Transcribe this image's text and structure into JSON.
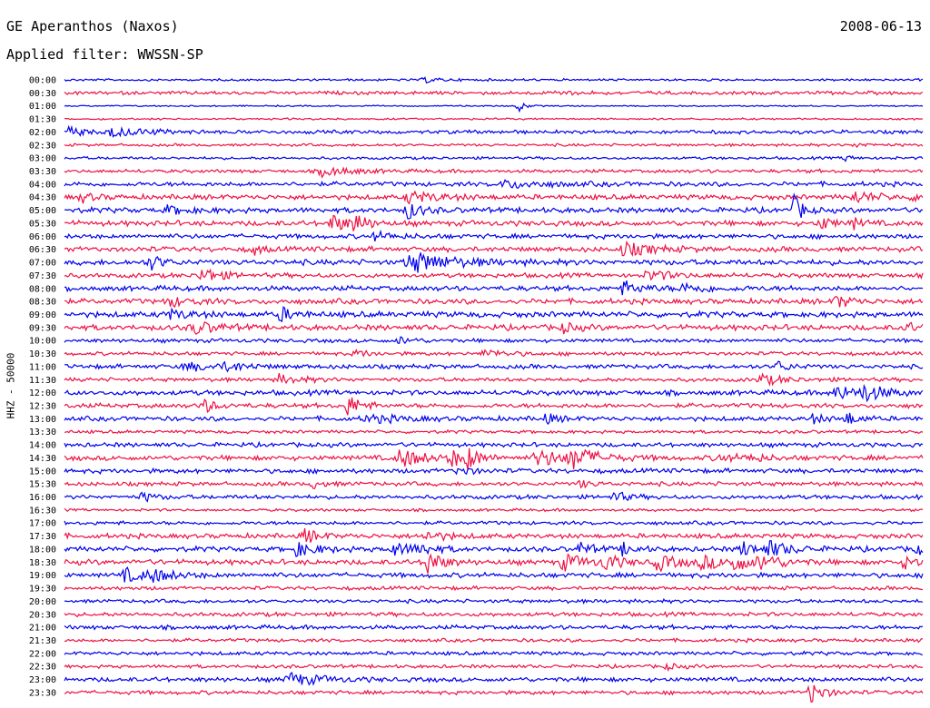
{
  "header": {
    "station": "GE Aperanthos (Naxos)",
    "date": "2008-06-13",
    "filter": "Applied filter: WWSSN-SP"
  },
  "chart_data": {
    "type": "line",
    "ylabel": "HHZ - 50000",
    "colors": {
      "even": "#0000ee",
      "odd": "#ee1144"
    },
    "rows": [
      {
        "label": "00:00",
        "noise": 1.0,
        "events": [
          [
            0.42,
            3,
            0.01
          ]
        ]
      },
      {
        "label": "00:30",
        "noise": 1.5,
        "events": [
          [
            0.57,
            2,
            0.02
          ]
        ]
      },
      {
        "label": "01:00",
        "noise": 0.6,
        "events": [
          [
            0.53,
            6,
            0.003
          ]
        ]
      },
      {
        "label": "01:30",
        "noise": 0.8,
        "events": []
      },
      {
        "label": "02:00",
        "noise": 1.6,
        "events": [
          [
            0.005,
            6,
            0.01
          ],
          [
            0.05,
            5,
            0.04
          ]
        ]
      },
      {
        "label": "02:30",
        "noise": 1.2,
        "events": [
          [
            0.92,
            2,
            0.02
          ]
        ]
      },
      {
        "label": "03:00",
        "noise": 1.2,
        "events": [
          [
            0.91,
            3,
            0.005
          ]
        ]
      },
      {
        "label": "03:30",
        "noise": 1.5,
        "events": [
          [
            0.3,
            5,
            0.03
          ]
        ]
      },
      {
        "label": "04:00",
        "noise": 2.0,
        "events": [
          [
            0.51,
            4,
            0.04
          ]
        ]
      },
      {
        "label": "04:30",
        "noise": 2.2,
        "events": [
          [
            0.02,
            5,
            0.01
          ],
          [
            0.4,
            6,
            0.03
          ],
          [
            0.92,
            6,
            0.02
          ],
          [
            0.99,
            4,
            0.005
          ]
        ]
      },
      {
        "label": "05:00",
        "noise": 2.3,
        "events": [
          [
            0.12,
            4,
            0.02
          ],
          [
            0.4,
            9,
            0.01
          ],
          [
            0.85,
            16,
            0.005
          ]
        ]
      },
      {
        "label": "05:30",
        "noise": 2.3,
        "events": [
          [
            0.31,
            10,
            0.015
          ],
          [
            0.34,
            12,
            0.005
          ],
          [
            0.88,
            7,
            0.01
          ],
          [
            0.92,
            5,
            0.005
          ]
        ]
      },
      {
        "label": "06:00",
        "noise": 2.0,
        "events": [
          [
            0.36,
            4,
            0.02
          ]
        ]
      },
      {
        "label": "06:30",
        "noise": 2.2,
        "events": [
          [
            0.22,
            6,
            0.005
          ],
          [
            0.65,
            7,
            0.03
          ]
        ]
      },
      {
        "label": "07:00",
        "noise": 2.4,
        "events": [
          [
            0.1,
            8,
            0.01
          ],
          [
            0.4,
            12,
            0.04
          ]
        ]
      },
      {
        "label": "07:30",
        "noise": 2.0,
        "events": [
          [
            0.16,
            9,
            0.015
          ],
          [
            0.68,
            6,
            0.02
          ]
        ]
      },
      {
        "label": "08:00",
        "noise": 2.2,
        "events": [
          [
            0.65,
            7,
            0.02
          ],
          [
            0.72,
            4,
            0.03
          ]
        ]
      },
      {
        "label": "08:30",
        "noise": 2.3,
        "events": [
          [
            0.12,
            5,
            0.02
          ],
          [
            0.9,
            8,
            0.01
          ]
        ]
      },
      {
        "label": "09:00",
        "noise": 2.5,
        "events": [
          [
            0.12,
            5,
            0.02
          ],
          [
            0.25,
            8,
            0.01
          ]
        ]
      },
      {
        "label": "09:30",
        "noise": 2.4,
        "events": [
          [
            0.15,
            7,
            0.02
          ],
          [
            0.58,
            5,
            0.01
          ],
          [
            0.98,
            5,
            0.01
          ]
        ]
      },
      {
        "label": "10:00",
        "noise": 1.7,
        "events": [
          [
            0.39,
            4,
            0.01
          ]
        ]
      },
      {
        "label": "10:30",
        "noise": 1.6,
        "events": [
          [
            0.34,
            4,
            0.01
          ],
          [
            0.49,
            4,
            0.02
          ]
        ]
      },
      {
        "label": "11:00",
        "noise": 1.9,
        "events": [
          [
            0.14,
            4,
            0.04
          ],
          [
            0.19,
            5,
            0.01
          ],
          [
            0.83,
            6,
            0.01
          ]
        ]
      },
      {
        "label": "11:30",
        "noise": 1.7,
        "events": [
          [
            0.25,
            5,
            0.02
          ],
          [
            0.81,
            6,
            0.02
          ]
        ]
      },
      {
        "label": "12:00",
        "noise": 2.2,
        "events": [
          [
            0.9,
            11,
            0.01
          ],
          [
            0.93,
            9,
            0.02
          ]
        ]
      },
      {
        "label": "12:30",
        "noise": 2.0,
        "events": [
          [
            0.16,
            8,
            0.01
          ],
          [
            0.33,
            12,
            0.01
          ]
        ]
      },
      {
        "label": "13:00",
        "noise": 2.0,
        "events": [
          [
            0.35,
            4,
            0.04
          ],
          [
            0.56,
            5,
            0.01
          ],
          [
            0.87,
            5,
            0.01
          ],
          [
            0.91,
            7,
            0.01
          ]
        ]
      },
      {
        "label": "13:30",
        "noise": 1.4,
        "events": []
      },
      {
        "label": "14:00",
        "noise": 1.9,
        "events": []
      },
      {
        "label": "14:30",
        "noise": 2.2,
        "events": [
          [
            0.39,
            11,
            0.02
          ],
          [
            0.45,
            9,
            0.01
          ],
          [
            0.47,
            10,
            0.01
          ],
          [
            0.55,
            9,
            0.03
          ],
          [
            0.59,
            11,
            0.02
          ],
          [
            0.76,
            4,
            0.02
          ],
          [
            0.8,
            4,
            0.01
          ]
        ]
      },
      {
        "label": "15:00",
        "noise": 2.0,
        "events": [
          [
            0.46,
            5,
            0.01
          ]
        ]
      },
      {
        "label": "15:30",
        "noise": 1.8,
        "events": [
          [
            0.29,
            4,
            0.01
          ],
          [
            0.6,
            4,
            0.01
          ]
        ]
      },
      {
        "label": "16:00",
        "noise": 1.8,
        "events": [
          [
            0.09,
            5,
            0.01
          ],
          [
            0.64,
            6,
            0.01
          ]
        ]
      },
      {
        "label": "16:30",
        "noise": 1.2,
        "events": []
      },
      {
        "label": "17:00",
        "noise": 1.6,
        "events": []
      },
      {
        "label": "17:30",
        "noise": 2.1,
        "events": [
          [
            0.28,
            8,
            0.01
          ],
          [
            0.42,
            5,
            0.02
          ]
        ]
      },
      {
        "label": "18:00",
        "noise": 2.2,
        "events": [
          [
            0.27,
            7,
            0.02
          ],
          [
            0.38,
            7,
            0.02
          ],
          [
            0.41,
            6,
            0.01
          ],
          [
            0.6,
            7,
            0.01
          ],
          [
            0.65,
            6,
            0.01
          ],
          [
            0.79,
            9,
            0.01
          ],
          [
            0.82,
            8,
            0.02
          ],
          [
            0.99,
            6,
            0.01
          ]
        ]
      },
      {
        "label": "18:30",
        "noise": 2.3,
        "events": [
          [
            0.42,
            18,
            0.01
          ],
          [
            0.58,
            9,
            0.02
          ],
          [
            0.63,
            9,
            0.01
          ],
          [
            0.69,
            8,
            0.02
          ],
          [
            0.74,
            7,
            0.02
          ],
          [
            0.78,
            10,
            0.01
          ],
          [
            0.81,
            8,
            0.02
          ],
          [
            0.98,
            7,
            0.01
          ]
        ]
      },
      {
        "label": "19:00",
        "noise": 2.1,
        "events": [
          [
            0.07,
            7,
            0.02
          ],
          [
            0.1,
            6,
            0.02
          ]
        ]
      },
      {
        "label": "19:30",
        "noise": 1.6,
        "events": []
      },
      {
        "label": "20:00",
        "noise": 1.6,
        "events": []
      },
      {
        "label": "20:30",
        "noise": 1.8,
        "events": []
      },
      {
        "label": "21:00",
        "noise": 1.8,
        "events": []
      },
      {
        "label": "21:30",
        "noise": 1.5,
        "events": []
      },
      {
        "label": "22:00",
        "noise": 1.6,
        "events": []
      },
      {
        "label": "22:30",
        "noise": 1.5,
        "events": [
          [
            0.7,
            3,
            0.01
          ]
        ]
      },
      {
        "label": "23:00",
        "noise": 2.0,
        "events": [
          [
            0.26,
            7,
            0.03
          ]
        ]
      },
      {
        "label": "23:30",
        "noise": 1.7,
        "events": [
          [
            0.87,
            12,
            0.01
          ]
        ]
      }
    ]
  }
}
